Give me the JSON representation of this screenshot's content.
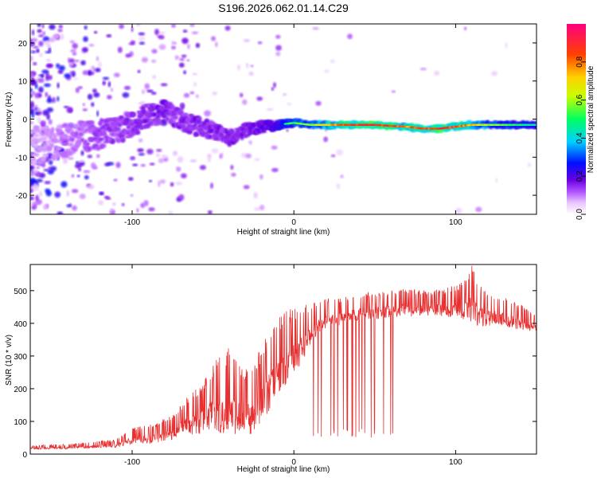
{
  "figure_title": "S196.2026.062.01.14.C29",
  "colors": {
    "snr_line": "#e83030",
    "axis": "#000000",
    "colormap": [
      "#ffffff",
      "#e9c6ff",
      "#b050ff",
      "#6a00e0",
      "#0010ff",
      "#00d0ff",
      "#00ff60",
      "#c8ff00",
      "#ffd000",
      "#ff4000",
      "#ff0080"
    ]
  },
  "chart_data": [
    {
      "type": "heatmap",
      "title": "S196.2026.062.01.14.C29",
      "xlabel": "Height of straight line (km)",
      "ylabel": "Frequency (Hz)",
      "xlim": [
        -163,
        150
      ],
      "ylim": [
        -25,
        25
      ],
      "xticks": [
        -100,
        0,
        100
      ],
      "xtick_labels": [
        "-100",
        "0",
        "100"
      ],
      "yticks": [
        -20,
        -10,
        0,
        10,
        20
      ],
      "ytick_labels": [
        "-20",
        "-10",
        "0",
        "10",
        "20"
      ],
      "colorbar": {
        "label": "Normalized spectral amplitude",
        "range": [
          0,
          1
        ],
        "ticks": [
          0.0,
          0.2,
          0.4,
          0.6,
          0.8
        ],
        "tick_labels": [
          "0.0",
          "0.2",
          "0.4",
          "0.6",
          "0.8"
        ]
      },
      "ridge": {
        "description_points_x": [
          -160,
          -140,
          -120,
          -100,
          -90,
          -80,
          -70,
          -60,
          -50,
          -40,
          -30,
          -20,
          -10,
          0,
          10,
          20,
          30,
          40,
          50,
          60,
          70,
          80,
          90,
          100,
          110,
          120,
          130,
          140,
          148
        ],
        "frequency_hz": [
          -7,
          -5.5,
          -4,
          -1.5,
          1,
          2,
          0,
          -2,
          -3,
          -5,
          -3,
          -2,
          -1.5,
          -1,
          -1.5,
          -1.5,
          -1.5,
          -1.5,
          -1.5,
          -1.8,
          -2,
          -2.5,
          -2.5,
          -2,
          -1.5,
          -1.5,
          -1.5,
          -1.5,
          -1.5
        ],
        "amplitude": [
          0.15,
          0.2,
          0.25,
          0.28,
          0.3,
          0.32,
          0.3,
          0.3,
          0.3,
          0.3,
          0.3,
          0.35,
          0.45,
          0.55,
          0.6,
          0.7,
          0.85,
          0.9,
          0.9,
          0.85,
          0.8,
          0.85,
          0.9,
          0.85,
          0.75,
          0.6,
          0.55,
          0.5,
          0.45
        ]
      }
    },
    {
      "type": "line",
      "xlabel": "Height of straight line (km)",
      "ylabel": "SNR (10 * v/v)",
      "xlim": [
        -163,
        150
      ],
      "ylim": [
        0,
        580
      ],
      "xticks": [
        -100,
        0,
        100
      ],
      "xtick_labels": [
        "-100",
        "0",
        "100"
      ],
      "yticks": [
        0,
        100,
        200,
        300,
        400,
        500
      ],
      "ytick_labels": [
        "0",
        "100",
        "200",
        "300",
        "400",
        "500"
      ],
      "series": [
        {
          "name": "SNR",
          "x": [
            -163,
            -150,
            -140,
            -130,
            -120,
            -110,
            -100,
            -95,
            -90,
            -85,
            -80,
            -75,
            -70,
            -65,
            -60,
            -55,
            -50,
            -45,
            -40,
            -35,
            -30,
            -25,
            -20,
            -15,
            -10,
            -5,
            0,
            5,
            10,
            15,
            20,
            25,
            30,
            35,
            40,
            45,
            50,
            55,
            60,
            65,
            70,
            75,
            80,
            85,
            90,
            95,
            100,
            105,
            110,
            115,
            120,
            125,
            130,
            135,
            140,
            145,
            150
          ],
          "envelope_low": [
            15,
            15,
            15,
            18,
            18,
            20,
            30,
            35,
            30,
            35,
            40,
            45,
            60,
            60,
            60,
            65,
            70,
            60,
            65,
            60,
            60,
            60,
            90,
            130,
            170,
            210,
            240,
            280,
            330,
            370,
            380,
            390,
            395,
            400,
            410,
            410,
            410,
            415,
            420,
            420,
            420,
            420,
            420,
            425,
            420,
            420,
            415,
            410,
            400,
            390,
            390,
            400,
            390,
            385,
            380,
            375,
            375
          ],
          "envelope_high": [
            25,
            30,
            30,
            35,
            40,
            45,
            80,
            85,
            90,
            95,
            110,
            120,
            150,
            180,
            200,
            240,
            280,
            300,
            330,
            280,
            260,
            280,
            330,
            390,
            420,
            440,
            450,
            455,
            460,
            470,
            475,
            480,
            480,
            490,
            495,
            495,
            500,
            500,
            500,
            505,
            505,
            505,
            500,
            500,
            505,
            510,
            520,
            530,
            580,
            525,
            500,
            490,
            480,
            470,
            460,
            440,
            430
          ]
        }
      ]
    }
  ]
}
